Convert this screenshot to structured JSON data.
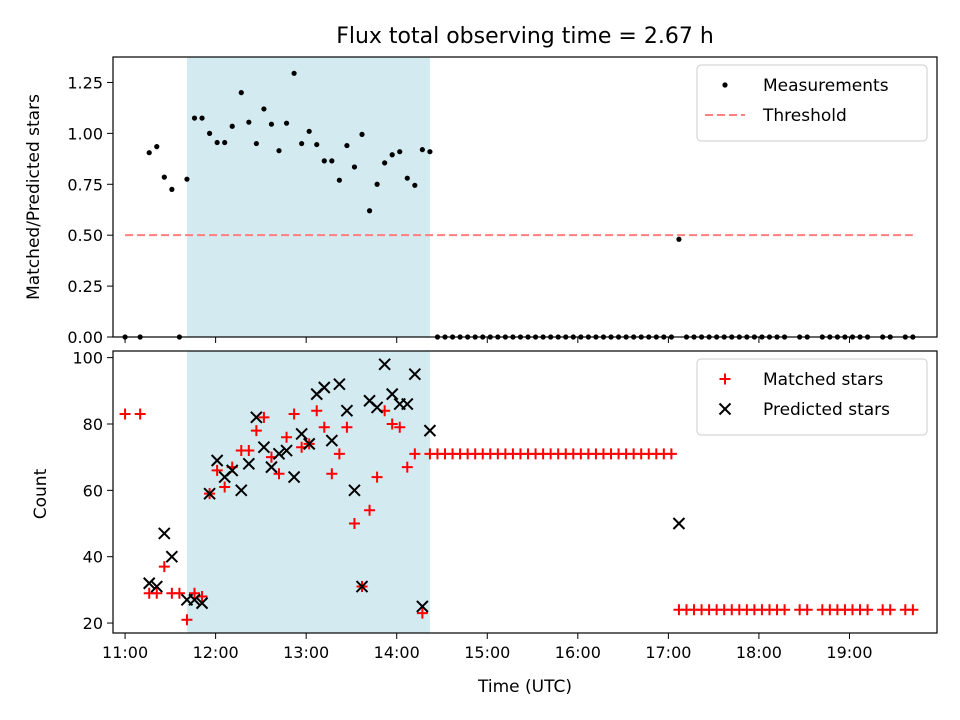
{
  "chart_data": [
    {
      "type": "scatter",
      "title": "Flux total observing time = 2.67 h",
      "xlabel": "",
      "ylabel": "Matched/Predicted stars",
      "xlim": [
        "10:52",
        "19:58"
      ],
      "ylim": [
        0,
        1.375
      ],
      "yticks": [
        "0.00",
        "0.25",
        "0.50",
        "0.75",
        "1.00",
        "1.25"
      ],
      "grid": false,
      "legend_position": "top-right",
      "highlight_span": {
        "x_start": "11:41",
        "x_end": "14:22",
        "color": "#d4eaf1"
      },
      "series": [
        {
          "name": "Measurements",
          "kind": "points",
          "color": "#000000",
          "points": [
            [
              "11:00",
              0
            ],
            [
              "11:10",
              0
            ],
            [
              "11:16",
              0.905
            ],
            [
              "11:21",
              0.935
            ],
            [
              "11:26",
              0.785
            ],
            [
              "11:31",
              0.725
            ],
            [
              "11:36",
              0
            ],
            [
              "11:41",
              0.775
            ],
            [
              "11:46",
              1.075
            ],
            [
              "11:51",
              1.075
            ],
            [
              "11:56",
              1.0
            ],
            [
              "12:01",
              0.955
            ],
            [
              "12:06",
              0.955
            ],
            [
              "12:11",
              1.035
            ],
            [
              "12:17",
              1.2
            ],
            [
              "12:22",
              1.055
            ],
            [
              "12:27",
              0.95
            ],
            [
              "12:32",
              1.12
            ],
            [
              "12:37",
              1.045
            ],
            [
              "12:42",
              0.915
            ],
            [
              "12:47",
              1.05
            ],
            [
              "12:52",
              1.295
            ],
            [
              "12:57",
              0.95
            ],
            [
              "13:02",
              1.01
            ],
            [
              "13:07",
              0.945
            ],
            [
              "13:12",
              0.865
            ],
            [
              "13:17",
              0.865
            ],
            [
              "13:22",
              0.77
            ],
            [
              "13:27",
              0.94
            ],
            [
              "13:32",
              0.835
            ],
            [
              "13:37",
              0.995
            ],
            [
              "13:42",
              0.62
            ],
            [
              "13:47",
              0.75
            ],
            [
              "13:52",
              0.855
            ],
            [
              "13:57",
              0.895
            ],
            [
              "14:02",
              0.91
            ],
            [
              "14:07",
              0.78
            ],
            [
              "14:12",
              0.745
            ],
            [
              "14:17",
              0.92
            ],
            [
              "14:22",
              0.91
            ],
            [
              "14:27",
              0
            ],
            [
              "14:32",
              0
            ],
            [
              "14:37",
              0
            ],
            [
              "14:42",
              0
            ],
            [
              "14:47",
              0
            ],
            [
              "14:52",
              0
            ],
            [
              "14:57",
              0
            ],
            [
              "15:02",
              0
            ],
            [
              "15:07",
              0
            ],
            [
              "15:12",
              0
            ],
            [
              "15:17",
              0
            ],
            [
              "15:22",
              0
            ],
            [
              "15:27",
              0
            ],
            [
              "15:32",
              0
            ],
            [
              "15:37",
              0
            ],
            [
              "15:42",
              0
            ],
            [
              "15:47",
              0
            ],
            [
              "15:52",
              0
            ],
            [
              "15:57",
              0
            ],
            [
              "16:02",
              0
            ],
            [
              "16:07",
              0
            ],
            [
              "16:12",
              0
            ],
            [
              "16:17",
              0
            ],
            [
              "16:22",
              0
            ],
            [
              "16:27",
              0
            ],
            [
              "16:32",
              0
            ],
            [
              "16:37",
              0
            ],
            [
              "16:42",
              0
            ],
            [
              "16:47",
              0
            ],
            [
              "16:52",
              0
            ],
            [
              "16:57",
              0
            ],
            [
              "17:02",
              0
            ],
            [
              "17:07",
              0.48
            ],
            [
              "17:12",
              0
            ],
            [
              "17:17",
              0
            ],
            [
              "17:22",
              0
            ],
            [
              "17:27",
              0
            ],
            [
              "17:32",
              0
            ],
            [
              "17:37",
              0
            ],
            [
              "17:42",
              0
            ],
            [
              "17:47",
              0
            ],
            [
              "17:52",
              0
            ],
            [
              "17:57",
              0
            ],
            [
              "18:02",
              0
            ],
            [
              "18:07",
              0
            ],
            [
              "18:12",
              0
            ],
            [
              "18:17",
              0
            ],
            [
              "18:27",
              0
            ],
            [
              "18:32",
              0
            ],
            [
              "18:42",
              0
            ],
            [
              "18:47",
              0
            ],
            [
              "18:52",
              0
            ],
            [
              "18:57",
              0
            ],
            [
              "19:02",
              0
            ],
            [
              "19:07",
              0
            ],
            [
              "19:12",
              0
            ],
            [
              "19:22",
              0
            ],
            [
              "19:27",
              0
            ],
            [
              "19:37",
              0
            ],
            [
              "19:42",
              0
            ]
          ]
        },
        {
          "name": "Threshold",
          "kind": "dashed-line",
          "color": "#ff7f7f",
          "points": [
            [
              "11:00",
              0.5
            ],
            [
              "19:42",
              0.5
            ]
          ]
        }
      ]
    },
    {
      "type": "scatter",
      "title": "",
      "xlabel": "Time (UTC)",
      "ylabel": "Count",
      "xlim": [
        "10:52",
        "19:58"
      ],
      "ylim": [
        17,
        102
      ],
      "yticks": [
        "20",
        "40",
        "60",
        "80",
        "100"
      ],
      "xticks": [
        "11:00",
        "12:00",
        "13:00",
        "14:00",
        "15:00",
        "16:00",
        "17:00",
        "18:00",
        "19:00"
      ],
      "grid": false,
      "legend_position": "top-right",
      "highlight_span": {
        "x_start": "11:41",
        "x_end": "14:22",
        "color": "#d4eaf1"
      },
      "series": [
        {
          "name": "Matched stars",
          "marker": "plus",
          "color": "#ff0000",
          "points": [
            [
              "11:00",
              83
            ],
            [
              "11:10",
              83
            ],
            [
              "11:16",
              29
            ],
            [
              "11:21",
              29
            ],
            [
              "11:26",
              37
            ],
            [
              "11:31",
              29
            ],
            [
              "11:36",
              29
            ],
            [
              "11:41",
              21
            ],
            [
              "11:46",
              29
            ],
            [
              "11:51",
              28
            ],
            [
              "11:56",
              59
            ],
            [
              "12:01",
              66
            ],
            [
              "12:06",
              61
            ],
            [
              "12:11",
              67
            ],
            [
              "12:17",
              72
            ],
            [
              "12:22",
              72
            ],
            [
              "12:27",
              78
            ],
            [
              "12:32",
              82
            ],
            [
              "12:37",
              70
            ],
            [
              "12:42",
              65
            ],
            [
              "12:47",
              76
            ],
            [
              "12:52",
              83
            ],
            [
              "12:57",
              73
            ],
            [
              "13:02",
              74
            ],
            [
              "13:07",
              84
            ],
            [
              "13:12",
              79
            ],
            [
              "13:17",
              65
            ],
            [
              "13:22",
              71
            ],
            [
              "13:27",
              79
            ],
            [
              "13:32",
              50
            ],
            [
              "13:37",
              31
            ],
            [
              "13:42",
              54
            ],
            [
              "13:47",
              64
            ],
            [
              "13:52",
              84
            ],
            [
              "13:57",
              80
            ],
            [
              "14:02",
              79
            ],
            [
              "14:07",
              67
            ],
            [
              "14:12",
              71
            ],
            [
              "14:17",
              23
            ],
            [
              "14:22",
              71
            ],
            [
              "14:27",
              71
            ],
            [
              "14:32",
              71
            ],
            [
              "14:37",
              71
            ],
            [
              "14:42",
              71
            ],
            [
              "14:47",
              71
            ],
            [
              "14:52",
              71
            ],
            [
              "14:57",
              71
            ],
            [
              "15:02",
              71
            ],
            [
              "15:07",
              71
            ],
            [
              "15:12",
              71
            ],
            [
              "15:17",
              71
            ],
            [
              "15:22",
              71
            ],
            [
              "15:27",
              71
            ],
            [
              "15:32",
              71
            ],
            [
              "15:37",
              71
            ],
            [
              "15:42",
              71
            ],
            [
              "15:47",
              71
            ],
            [
              "15:52",
              71
            ],
            [
              "15:57",
              71
            ],
            [
              "16:02",
              71
            ],
            [
              "16:07",
              71
            ],
            [
              "16:12",
              71
            ],
            [
              "16:17",
              71
            ],
            [
              "16:22",
              71
            ],
            [
              "16:27",
              71
            ],
            [
              "16:32",
              71
            ],
            [
              "16:37",
              71
            ],
            [
              "16:42",
              71
            ],
            [
              "16:47",
              71
            ],
            [
              "16:52",
              71
            ],
            [
              "16:57",
              71
            ],
            [
              "17:02",
              71
            ],
            [
              "17:07",
              24
            ],
            [
              "17:12",
              24
            ],
            [
              "17:17",
              24
            ],
            [
              "17:22",
              24
            ],
            [
              "17:27",
              24
            ],
            [
              "17:32",
              24
            ],
            [
              "17:37",
              24
            ],
            [
              "17:42",
              24
            ],
            [
              "17:47",
              24
            ],
            [
              "17:52",
              24
            ],
            [
              "17:57",
              24
            ],
            [
              "18:02",
              24
            ],
            [
              "18:07",
              24
            ],
            [
              "18:12",
              24
            ],
            [
              "18:17",
              24
            ],
            [
              "18:27",
              24
            ],
            [
              "18:32",
              24
            ],
            [
              "18:42",
              24
            ],
            [
              "18:47",
              24
            ],
            [
              "18:52",
              24
            ],
            [
              "18:57",
              24
            ],
            [
              "19:02",
              24
            ],
            [
              "19:07",
              24
            ],
            [
              "19:12",
              24
            ],
            [
              "19:22",
              24
            ],
            [
              "19:27",
              24
            ],
            [
              "19:37",
              24
            ],
            [
              "19:42",
              24
            ]
          ]
        },
        {
          "name": "Predicted stars",
          "marker": "x",
          "color": "#000000",
          "points": [
            [
              "11:16",
              32
            ],
            [
              "11:21",
              31
            ],
            [
              "11:26",
              47
            ],
            [
              "11:31",
              40
            ],
            [
              "11:41",
              27
            ],
            [
              "11:46",
              27
            ],
            [
              "11:51",
              26
            ],
            [
              "11:56",
              59
            ],
            [
              "12:01",
              69
            ],
            [
              "12:06",
              64
            ],
            [
              "12:11",
              66
            ],
            [
              "12:17",
              60
            ],
            [
              "12:22",
              68
            ],
            [
              "12:27",
              82
            ],
            [
              "12:32",
              73
            ],
            [
              "12:37",
              67
            ],
            [
              "12:42",
              71
            ],
            [
              "12:47",
              72
            ],
            [
              "12:52",
              64
            ],
            [
              "12:57",
              77
            ],
            [
              "13:02",
              74
            ],
            [
              "13:07",
              89
            ],
            [
              "13:12",
              91
            ],
            [
              "13:17",
              75
            ],
            [
              "13:22",
              92
            ],
            [
              "13:27",
              84
            ],
            [
              "13:32",
              60
            ],
            [
              "13:37",
              31
            ],
            [
              "13:42",
              87
            ],
            [
              "13:47",
              85
            ],
            [
              "13:52",
              98
            ],
            [
              "13:57",
              89
            ],
            [
              "14:02",
              86
            ],
            [
              "14:07",
              86
            ],
            [
              "14:12",
              95
            ],
            [
              "14:17",
              25
            ],
            [
              "14:22",
              78
            ],
            [
              "17:07",
              50
            ]
          ]
        }
      ]
    }
  ]
}
